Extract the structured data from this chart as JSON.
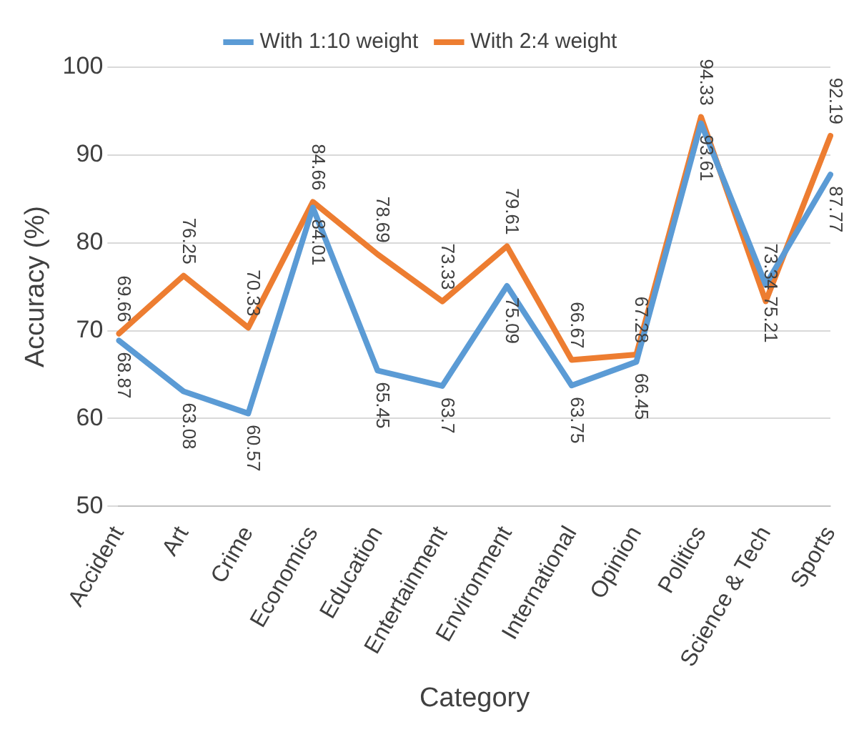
{
  "chart_data": {
    "type": "line",
    "xlabel": "Category",
    "ylabel": "Accuracy (%)",
    "categories": [
      "Accident",
      "Art",
      "Crime",
      "Economics",
      "Education",
      "Entertainment",
      "Environment",
      "International",
      "Opinion",
      "Politics",
      "Science & Tech",
      "Sports"
    ],
    "series": [
      {
        "name": "With 1:10 weight",
        "color": "#5b9bd5",
        "values": [
          68.87,
          63.08,
          60.57,
          84.01,
          65.45,
          63.7,
          75.09,
          63.75,
          66.45,
          93.61,
          75.21,
          87.77
        ]
      },
      {
        "name": "With 2:4 weight",
        "color": "#ed7d31",
        "values": [
          69.66,
          76.25,
          70.33,
          84.66,
          78.69,
          73.33,
          79.61,
          66.67,
          67.28,
          94.33,
          73.34,
          92.19
        ]
      }
    ],
    "ylim": [
      50,
      100
    ],
    "yticks": [
      50,
      60,
      70,
      80,
      90,
      100
    ],
    "grid": "y",
    "legend": "top",
    "marker": "none",
    "line_style": "solid",
    "data_labels": true
  }
}
